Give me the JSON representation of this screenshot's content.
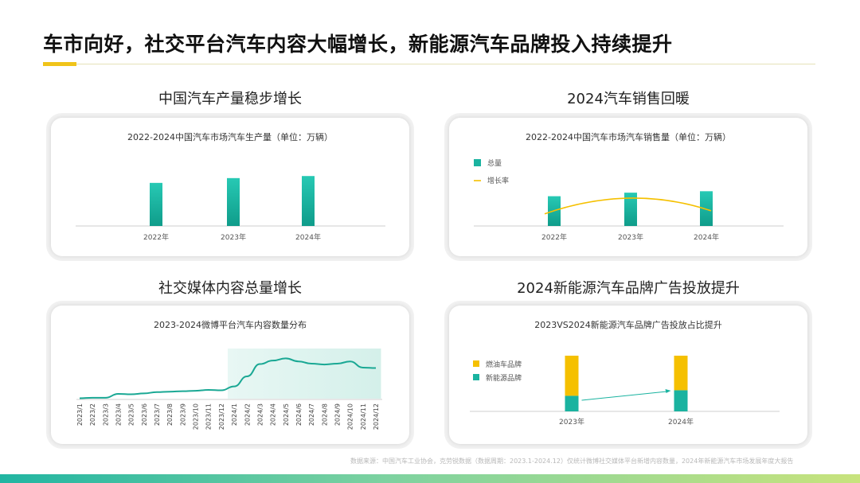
{
  "page": {
    "title": "车市向好，社交平台汽车内容大幅增长，新能源汽车品牌投入持续提升",
    "source": "数据来源：中国汽车工业协会，克劳锐数据（数据周期：2023.1-2024.12）仅统计微博社交媒体平台新增内容数量，2024年新能源汽车市场发展年度大报告",
    "accent_color": "#f0c419",
    "teal_color": "#1ab3a0",
    "yellow_color": "#f5c000"
  },
  "sections": {
    "s1": "中国汽车产量稳步增长",
    "s2": "2024汽车销售回暖",
    "s3": "社交媒体内容总量增长",
    "s4": "2024新能源汽车品牌广告投放提升"
  },
  "chart_data": [
    {
      "type": "bar",
      "title": "2022-2024中国汽车市场汽车生产量（单位：万辆）",
      "categories": [
        "2022年",
        "2023年",
        "2024年"
      ],
      "values": [
        2700,
        3000,
        3130
      ],
      "ylim": [
        0,
        3400
      ],
      "grid": false
    },
    {
      "type": "bar",
      "title": "2022-2024中国汽车市场汽车销售量（单位：万辆）",
      "categories": [
        "2022年",
        "2023年",
        "2024年"
      ],
      "series": [
        {
          "name": "总量",
          "type": "bar",
          "values": [
            2690,
            3010,
            3140
          ]
        },
        {
          "name": "增长率",
          "type": "line",
          "values": [
            2.1,
            12.0,
            4.5
          ]
        }
      ],
      "legend": "top-left",
      "ylim": [
        0,
        3400
      ],
      "grid": false
    },
    {
      "type": "area",
      "title": "2023-2024微博平台汽车内容数量分布",
      "x": [
        "2023/1",
        "2023/2",
        "2023/3",
        "2023/4",
        "2023/5",
        "2023/6",
        "2023/7",
        "2023/8",
        "2023/9",
        "2023/10",
        "2023/11",
        "2023/12",
        "2024/1",
        "2024/2",
        "2024/3",
        "2024/4",
        "2024/5",
        "2024/6",
        "2024/7",
        "2024/8",
        "2024/9",
        "2024/10",
        "2024/11",
        "2024/12"
      ],
      "values": [
        1,
        2,
        2,
        11,
        10,
        12,
        15,
        16,
        17,
        18,
        20,
        19,
        28,
        51,
        79,
        87,
        92,
        85,
        80,
        78,
        80,
        85,
        71,
        70
      ],
      "highlight_range": [
        "2024/1",
        "2024/12"
      ],
      "ylim": [
        0,
        100
      ],
      "grid": false
    },
    {
      "type": "bar",
      "stacked": true,
      "title": "2023VS2024新能源汽车品牌广告投放占比提升",
      "categories": [
        "2023年",
        "2024年"
      ],
      "series": [
        {
          "name": "新能源品牌",
          "values": [
            28,
            38
          ]
        },
        {
          "name": "燃油车品牌",
          "values": [
            72,
            62
          ]
        }
      ],
      "legend": "left",
      "ylim": [
        0,
        100
      ],
      "grid": false
    }
  ]
}
